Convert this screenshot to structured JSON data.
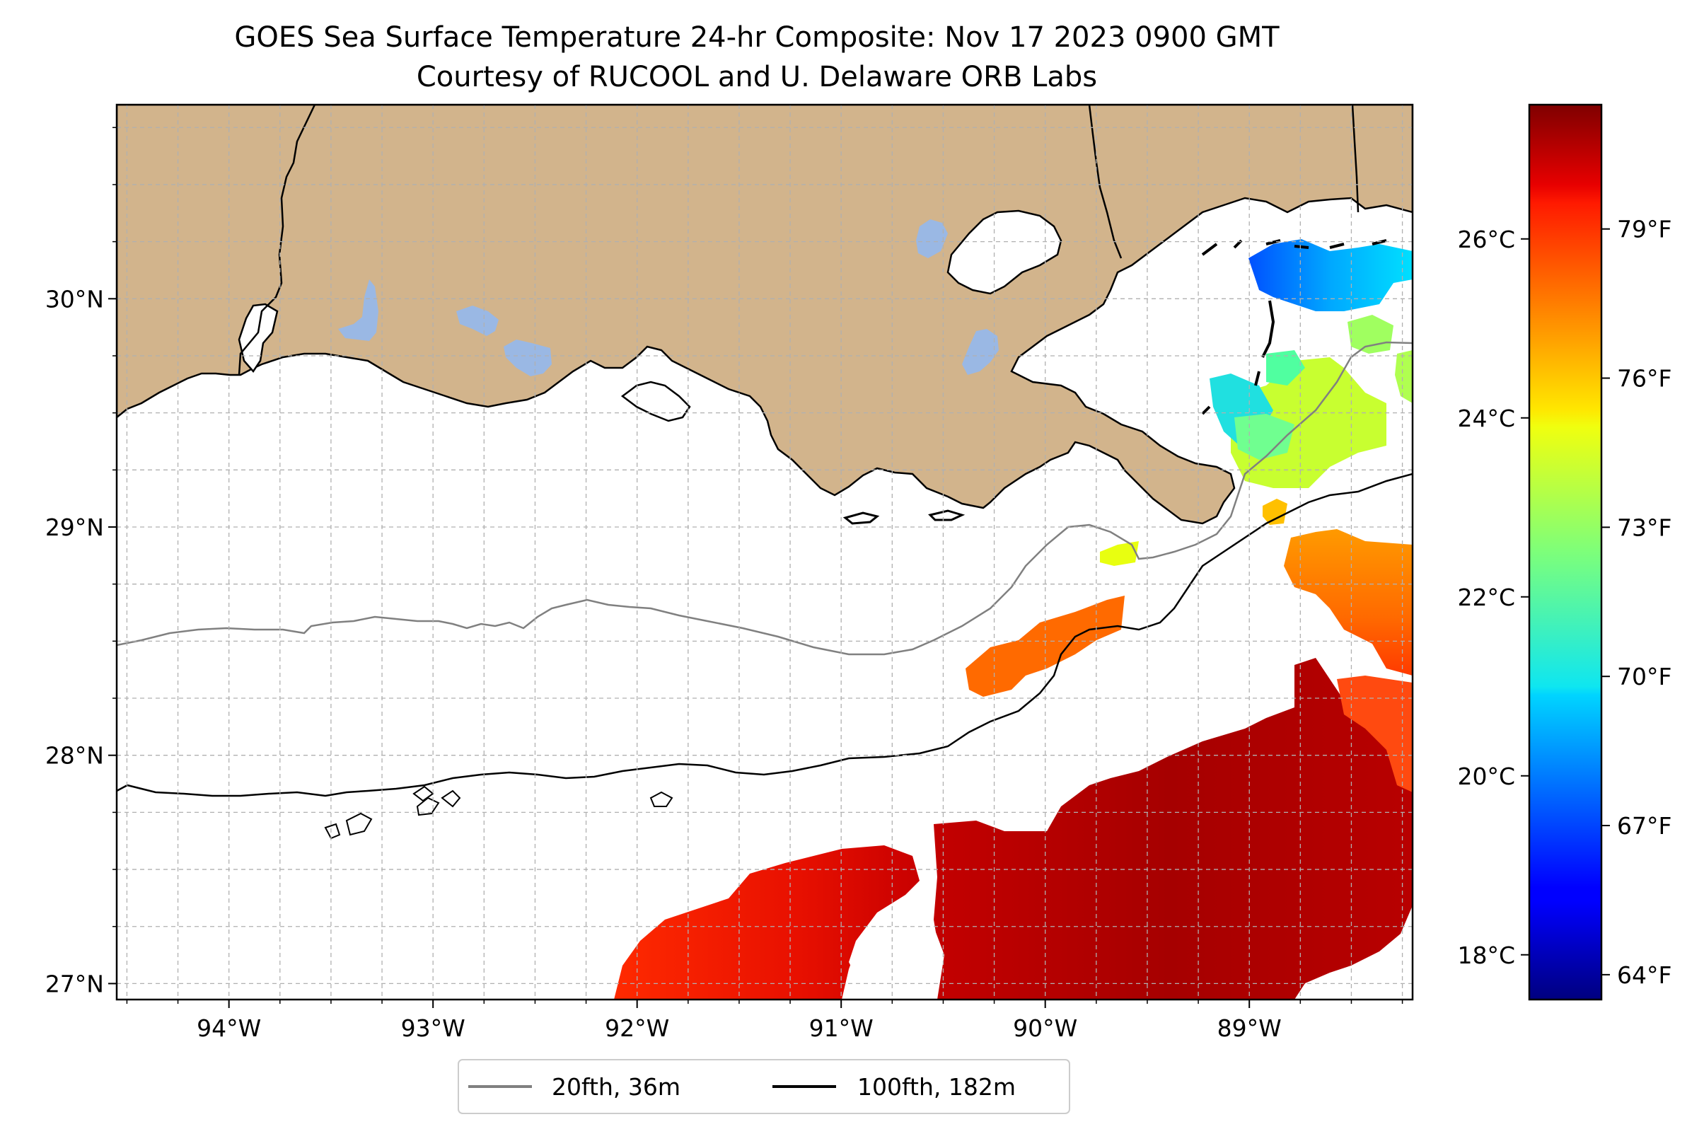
{
  "title": {
    "line1": "GOES Sea Surface Temperature 24-hr Composite: Nov 17 2023 0900 GMT",
    "line2": "Courtesy of RUCOOL and U. Delaware ORB Labs"
  },
  "map": {
    "lon_range": [
      -94.55,
      -88.2
    ],
    "lat_range": [
      26.93,
      30.85
    ],
    "lon_ticks": [
      {
        "value": -94,
        "label": "94°W"
      },
      {
        "value": -93,
        "label": "93°W"
      },
      {
        "value": -92,
        "label": "92°W"
      },
      {
        "value": -91,
        "label": "91°W"
      },
      {
        "value": -90,
        "label": "90°W"
      },
      {
        "value": -89,
        "label": "89°W"
      }
    ],
    "lat_ticks": [
      {
        "value": 27,
        "label": "27°N"
      },
      {
        "value": 28,
        "label": "28°N"
      },
      {
        "value": 29,
        "label": "29°N"
      },
      {
        "value": 30,
        "label": "30°N"
      }
    ],
    "grid": true,
    "land_color": "#d2b48c",
    "lake_color": "#9ab8e4"
  },
  "colorbar": {
    "colormap": "jet",
    "range_f": [
      63.5,
      81.5
    ],
    "celsius_ticks": [
      {
        "value": 18,
        "label": "18°C"
      },
      {
        "value": 20,
        "label": "20°C"
      },
      {
        "value": 22,
        "label": "22°C"
      },
      {
        "value": 24,
        "label": "24°C"
      },
      {
        "value": 26,
        "label": "26°C"
      }
    ],
    "fahrenheit_ticks": [
      {
        "value": 64,
        "label": "64°F"
      },
      {
        "value": 67,
        "label": "67°F"
      },
      {
        "value": 70,
        "label": "70°F"
      },
      {
        "value": 73,
        "label": "73°F"
      },
      {
        "value": 76,
        "label": "76°F"
      },
      {
        "value": 79,
        "label": "79°F"
      }
    ]
  },
  "legend": {
    "placement": "bottom-center",
    "items": [
      {
        "label": "20fth, 36m",
        "color": "#808080"
      },
      {
        "label": "100fth, 182m",
        "color": "#000000"
      }
    ]
  }
}
